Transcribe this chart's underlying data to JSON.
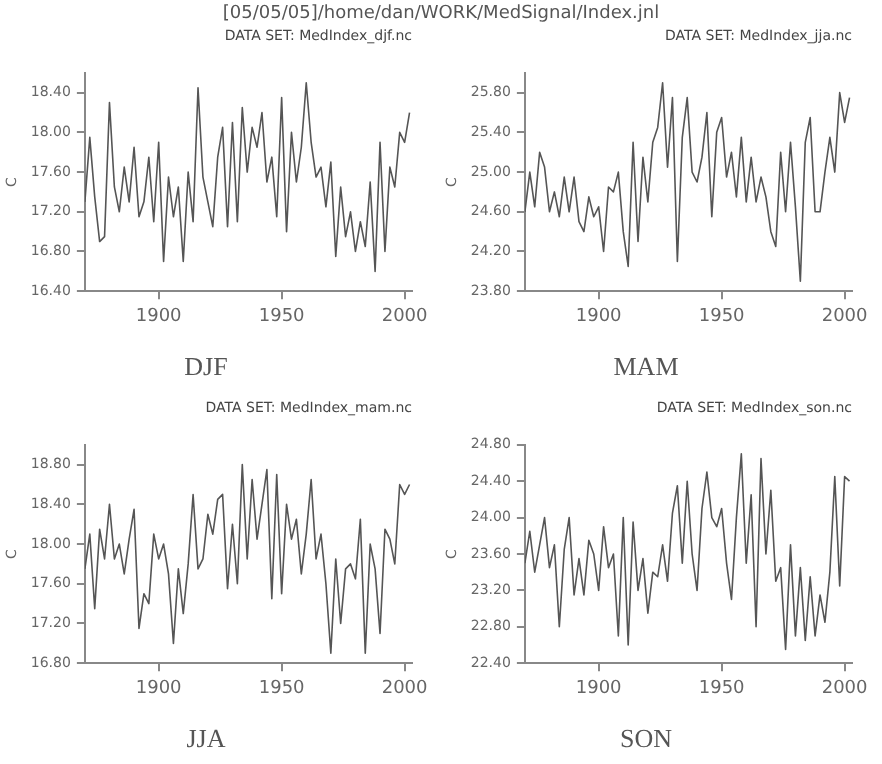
{
  "chart_data": [
    {
      "type": "line",
      "title": "DJF",
      "subtitle": "DATA SET: MedIndex_djf.nc",
      "annotations": [
        "[05/05/05]/home/dan/WORK/MedSignal/Index.jnl"
      ],
      "ylabel": "C",
      "xlim": [
        1870,
        2003
      ],
      "xticks": [
        1900,
        1950,
        2000
      ],
      "ylim": [
        16.4,
        18.6
      ],
      "yticks": [
        {
          "value": 16.4,
          "label": "16.40"
        },
        {
          "value": 16.8,
          "label": "16.80"
        },
        {
          "value": 17.2,
          "label": "17.20"
        },
        {
          "value": 17.6,
          "label": "17.60"
        },
        {
          "value": 18.0,
          "label": "18.00"
        },
        {
          "value": 18.4,
          "label": "18.40"
        }
      ],
      "grid": false,
      "legend": false,
      "marker": "none",
      "line_style": "solid",
      "x": [
        1870,
        1872,
        1874,
        1876,
        1878,
        1880,
        1882,
        1884,
        1886,
        1888,
        1890,
        1892,
        1894,
        1896,
        1898,
        1900,
        1902,
        1904,
        1906,
        1908,
        1910,
        1912,
        1914,
        1916,
        1918,
        1920,
        1922,
        1924,
        1926,
        1928,
        1930,
        1932,
        1934,
        1936,
        1938,
        1940,
        1942,
        1944,
        1946,
        1948,
        1950,
        1952,
        1954,
        1956,
        1958,
        1960,
        1962,
        1964,
        1966,
        1968,
        1970,
        1972,
        1974,
        1976,
        1978,
        1980,
        1982,
        1984,
        1986,
        1988,
        1990,
        1992,
        1994,
        1996,
        1998,
        2000,
        2002
      ],
      "series": [
        {
          "color": "#555555",
          "values": [
            17.3,
            17.95,
            17.35,
            16.9,
            16.95,
            18.3,
            17.45,
            17.2,
            17.65,
            17.3,
            17.85,
            17.15,
            17.3,
            17.75,
            17.1,
            17.9,
            16.7,
            17.55,
            17.15,
            17.45,
            16.7,
            17.6,
            17.1,
            18.45,
            17.55,
            17.3,
            17.05,
            17.75,
            18.05,
            17.05,
            18.1,
            17.1,
            18.25,
            17.6,
            18.05,
            17.85,
            18.2,
            17.5,
            17.75,
            17.15,
            18.35,
            17.0,
            18.0,
            17.5,
            17.85,
            18.5,
            17.9,
            17.55,
            17.65,
            17.25,
            17.7,
            16.75,
            17.45,
            16.95,
            17.2,
            16.8,
            17.1,
            16.85,
            17.5,
            16.6,
            17.9,
            16.8,
            17.65,
            17.45,
            18.0,
            17.9,
            18.2
          ]
        }
      ]
    },
    {
      "type": "line",
      "title": "MAM",
      "subtitle": "DATA SET: MedIndex_jja.nc",
      "ylabel": "C",
      "xlim": [
        1870,
        2003
      ],
      "xticks": [
        1900,
        1950,
        2000
      ],
      "ylim": [
        23.8,
        26.0
      ],
      "yticks": [
        {
          "value": 23.8,
          "label": "23.80"
        },
        {
          "value": 24.2,
          "label": "24.20"
        },
        {
          "value": 24.6,
          "label": "24.60"
        },
        {
          "value": 25.0,
          "label": "25.00"
        },
        {
          "value": 25.4,
          "label": "25.40"
        },
        {
          "value": 25.8,
          "label": "25.80"
        }
      ],
      "grid": false,
      "legend": false,
      "marker": "none",
      "line_style": "solid",
      "x": [
        1870,
        1872,
        1874,
        1876,
        1878,
        1880,
        1882,
        1884,
        1886,
        1888,
        1890,
        1892,
        1894,
        1896,
        1898,
        1900,
        1902,
        1904,
        1906,
        1908,
        1910,
        1912,
        1914,
        1916,
        1918,
        1920,
        1922,
        1924,
        1926,
        1928,
        1930,
        1932,
        1934,
        1936,
        1938,
        1940,
        1942,
        1944,
        1946,
        1948,
        1950,
        1952,
        1954,
        1956,
        1958,
        1960,
        1962,
        1964,
        1966,
        1968,
        1970,
        1972,
        1974,
        1976,
        1978,
        1980,
        1982,
        1984,
        1986,
        1988,
        1990,
        1992,
        1994,
        1996,
        1998,
        2000,
        2002
      ],
      "series": [
        {
          "color": "#555555",
          "values": [
            24.6,
            25.0,
            24.65,
            25.2,
            25.05,
            24.6,
            24.8,
            24.55,
            24.95,
            24.6,
            24.95,
            24.5,
            24.4,
            24.75,
            24.55,
            24.65,
            24.2,
            24.85,
            24.8,
            25.0,
            24.4,
            24.05,
            25.3,
            24.3,
            25.15,
            24.7,
            25.3,
            25.45,
            25.9,
            25.05,
            25.75,
            24.1,
            25.35,
            25.75,
            25.0,
            24.9,
            25.15,
            25.6,
            24.55,
            25.4,
            25.55,
            24.95,
            25.2,
            24.75,
            25.35,
            24.7,
            25.15,
            24.7,
            24.95,
            24.75,
            24.4,
            24.25,
            25.2,
            24.6,
            25.3,
            24.65,
            23.9,
            25.3,
            25.55,
            24.6,
            24.6,
            25.0,
            25.35,
            25.0,
            25.8,
            25.5,
            25.75
          ]
        }
      ]
    },
    {
      "type": "line",
      "title": "JJA",
      "subtitle": "DATA SET: MedIndex_mam.nc",
      "ylabel": "C",
      "xlim": [
        1870,
        2003
      ],
      "xticks": [
        1900,
        1950,
        2000
      ],
      "ylim": [
        16.8,
        19.0
      ],
      "yticks": [
        {
          "value": 16.8,
          "label": "16.80"
        },
        {
          "value": 17.2,
          "label": "17.20"
        },
        {
          "value": 17.6,
          "label": "17.60"
        },
        {
          "value": 18.0,
          "label": "18.00"
        },
        {
          "value": 18.4,
          "label": "18.40"
        },
        {
          "value": 18.8,
          "label": "18.80"
        }
      ],
      "grid": false,
      "legend": false,
      "marker": "none",
      "line_style": "solid",
      "x": [
        1870,
        1872,
        1874,
        1876,
        1878,
        1880,
        1882,
        1884,
        1886,
        1888,
        1890,
        1892,
        1894,
        1896,
        1898,
        1900,
        1902,
        1904,
        1906,
        1908,
        1910,
        1912,
        1914,
        1916,
        1918,
        1920,
        1922,
        1924,
        1926,
        1928,
        1930,
        1932,
        1934,
        1936,
        1938,
        1940,
        1942,
        1944,
        1946,
        1948,
        1950,
        1952,
        1954,
        1956,
        1958,
        1960,
        1962,
        1964,
        1966,
        1968,
        1970,
        1972,
        1974,
        1976,
        1978,
        1980,
        1982,
        1984,
        1986,
        1988,
        1990,
        1992,
        1994,
        1996,
        1998,
        2000,
        2002
      ],
      "series": [
        {
          "color": "#555555",
          "values": [
            17.75,
            18.1,
            17.35,
            18.15,
            17.85,
            18.4,
            17.85,
            18.0,
            17.7,
            18.05,
            18.35,
            17.15,
            17.5,
            17.4,
            18.1,
            17.85,
            18.0,
            17.7,
            17.0,
            17.75,
            17.3,
            17.8,
            18.5,
            17.75,
            17.85,
            18.3,
            18.1,
            18.45,
            18.5,
            17.55,
            18.2,
            17.6,
            18.8,
            17.85,
            18.65,
            18.05,
            18.4,
            18.75,
            17.45,
            18.7,
            17.5,
            18.4,
            18.05,
            18.25,
            17.7,
            18.1,
            18.65,
            17.85,
            18.1,
            17.6,
            16.9,
            17.85,
            17.2,
            17.75,
            17.8,
            17.65,
            18.25,
            16.9,
            18.0,
            17.75,
            17.1,
            18.15,
            18.05,
            17.8,
            18.6,
            18.5,
            18.6
          ]
        }
      ]
    },
    {
      "type": "line",
      "title": "SON",
      "subtitle": "DATA SET: MedIndex_son.nc",
      "ylabel": "C",
      "xlim": [
        1870,
        2003
      ],
      "xticks": [
        1900,
        1950,
        2000
      ],
      "ylim": [
        22.4,
        24.8
      ],
      "yticks": [
        {
          "value": 22.4,
          "label": "22.40"
        },
        {
          "value": 22.8,
          "label": "22.80"
        },
        {
          "value": 23.2,
          "label": "23.20"
        },
        {
          "value": 23.6,
          "label": "23.60"
        },
        {
          "value": 24.0,
          "label": "24.00"
        },
        {
          "value": 24.4,
          "label": "24.40"
        },
        {
          "value": 24.8,
          "label": "24.80"
        }
      ],
      "grid": false,
      "legend": false,
      "marker": "none",
      "line_style": "solid",
      "x": [
        1870,
        1872,
        1874,
        1876,
        1878,
        1880,
        1882,
        1884,
        1886,
        1888,
        1890,
        1892,
        1894,
        1896,
        1898,
        1900,
        1902,
        1904,
        1906,
        1908,
        1910,
        1912,
        1914,
        1916,
        1918,
        1920,
        1922,
        1924,
        1926,
        1928,
        1930,
        1932,
        1934,
        1936,
        1938,
        1940,
        1942,
        1944,
        1946,
        1948,
        1950,
        1952,
        1954,
        1956,
        1958,
        1960,
        1962,
        1964,
        1966,
        1968,
        1970,
        1972,
        1974,
        1976,
        1978,
        1980,
        1982,
        1984,
        1986,
        1988,
        1990,
        1992,
        1994,
        1996,
        1998,
        2000,
        2002
      ],
      "series": [
        {
          "color": "#555555",
          "values": [
            23.5,
            23.85,
            23.4,
            23.7,
            24.0,
            23.45,
            23.7,
            22.8,
            23.65,
            24.0,
            23.15,
            23.55,
            23.15,
            23.75,
            23.6,
            23.2,
            23.9,
            23.45,
            23.6,
            22.7,
            24.0,
            22.6,
            23.95,
            23.2,
            23.55,
            22.95,
            23.4,
            23.35,
            23.7,
            23.3,
            24.05,
            24.35,
            23.5,
            24.4,
            23.6,
            23.2,
            24.1,
            24.5,
            24.0,
            23.9,
            24.1,
            23.5,
            23.1,
            24.0,
            24.7,
            23.5,
            24.25,
            22.8,
            24.65,
            23.6,
            24.3,
            23.3,
            23.45,
            22.55,
            23.7,
            22.7,
            23.45,
            22.65,
            23.35,
            22.7,
            23.15,
            22.85,
            23.4,
            24.45,
            23.25,
            24.45,
            24.4
          ]
        }
      ]
    }
  ]
}
